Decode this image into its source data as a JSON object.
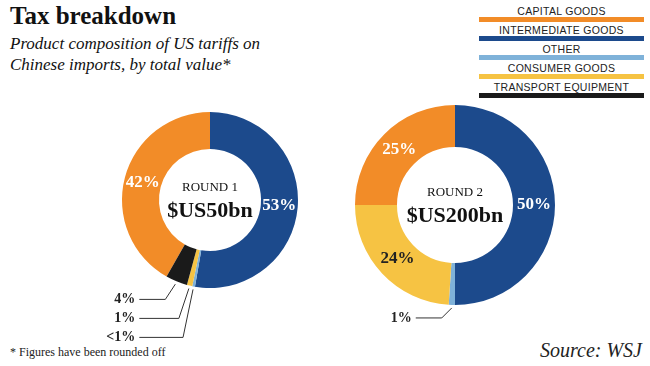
{
  "title": "Tax breakdown",
  "subtitle": "Product composition of US tariffs on Chinese imports, by total value*",
  "footnote": "* Figures have been rounded off",
  "source": "Source: WSJ",
  "chart_data": [
    {
      "type": "doughnut",
      "title": "ROUND 1",
      "subtitle": "$US50bn",
      "categories": [
        "CAPITAL GOODS",
        "INTERMEDIATE GOODS",
        "OTHER",
        "CONSUMER GOODS",
        "TRANSPORT EQUIPMENT"
      ],
      "values": [
        42,
        53,
        0.5,
        1,
        4
      ],
      "value_labels": [
        "42%",
        "53%",
        "<1%",
        "1%",
        "4%"
      ],
      "colors": [
        "#f28c28",
        "#1c4a8c",
        "#7fb2d9",
        "#f6c343",
        "#1a1a1a"
      ],
      "data_labels": true,
      "legend": "top right"
    },
    {
      "type": "doughnut",
      "title": "ROUND 2",
      "subtitle": "$US200bn",
      "categories": [
        "CAPITAL GOODS",
        "INTERMEDIATE GOODS",
        "OTHER",
        "CONSUMER GOODS"
      ],
      "values": [
        25,
        50,
        1,
        24
      ],
      "value_labels": [
        "25%",
        "50%",
        "1%",
        "24%"
      ],
      "colors": [
        "#f28c28",
        "#1c4a8c",
        "#7fb2d9",
        "#f6c343"
      ],
      "data_labels": true
    }
  ]
}
